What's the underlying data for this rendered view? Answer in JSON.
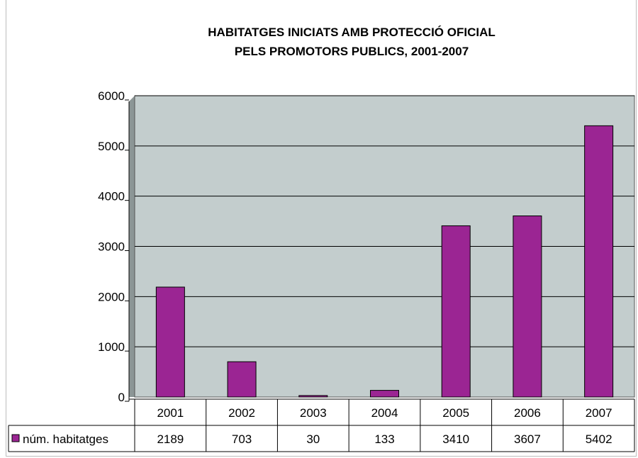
{
  "chart_data": {
    "type": "bar",
    "title": "HABITATGES INICIATS AMB PROTECCIÓ OFICIAL",
    "subtitle": "PELS PROMOTORS PUBLICS, 2001-2007",
    "categories": [
      "2001",
      "2002",
      "2003",
      "2004",
      "2005",
      "2006",
      "2007"
    ],
    "series": [
      {
        "name": "núm. habitatges",
        "values": [
          2189,
          703,
          30,
          133,
          3410,
          3607,
          5402
        ]
      }
    ],
    "ylim": [
      0,
      6000
    ],
    "yticks": [
      0,
      1000,
      2000,
      3000,
      4000,
      5000,
      6000
    ],
    "grid": true,
    "legend": "data-table",
    "colors": {
      "bar": "#9b2593",
      "plot_bg": "#c3cdcd",
      "gridline": "#000000"
    }
  }
}
